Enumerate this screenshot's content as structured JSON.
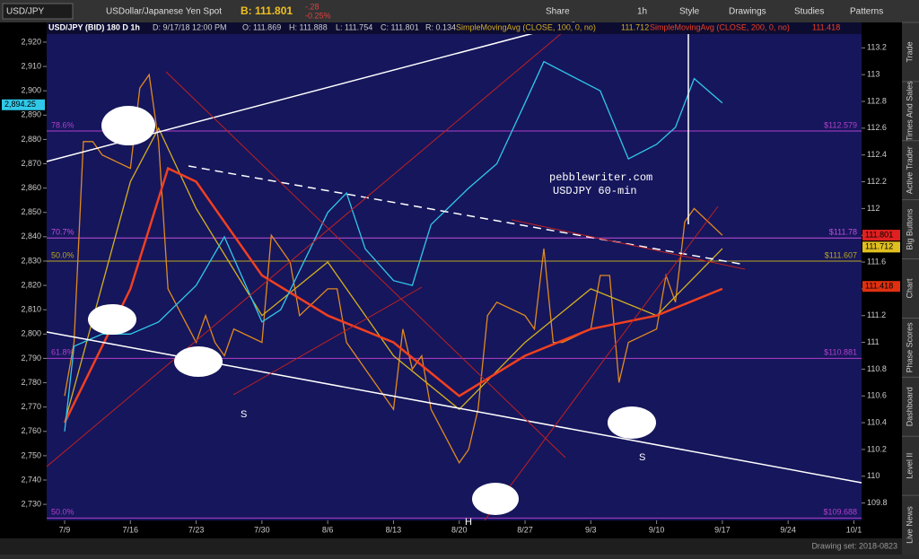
{
  "toolbar": {
    "symbol": "USD/JPY",
    "description": "USDollar/Japanese Yen Spot",
    "bid": "B: 111.801",
    "change": "-.28",
    "change_pct": "-0.25%",
    "share": "Share",
    "interval": "1h",
    "style": "Style",
    "drawings": "Drawings",
    "studies": "Studies",
    "patterns": "Patterns"
  },
  "side_tabs": [
    "Trade",
    "Times And Sales",
    "Active Trader",
    "Big Buttons",
    "Chart",
    "Phase Scores",
    "Dashboard",
    "Level II",
    "Live News"
  ],
  "info": {
    "date": "D: 9/17/18 12:00 PM",
    "open": "O: 111.869",
    "high": "H: 111.888",
    "low": "L: 111.754",
    "close": "C: 111.801",
    "range": "R: 0.134",
    "sma100_value": "111.712",
    "sma200_value": "111.418"
  },
  "footer": "Drawing set: 2018-0823",
  "chart_data": {
    "type": "line",
    "ylim": [
      109.67,
      113.39
    ],
    "yticks": [
      109.8,
      110,
      110.2,
      110.4,
      110.6,
      110.8,
      111,
      111.2,
      111.4,
      111.6,
      111.8,
      112,
      112.2,
      112.4,
      112.6,
      112.8,
      113,
      113.2
    ],
    "y2lim": [
      2723.4,
      2928.1
    ],
    "y2ticks": [
      {
        "value": 2730,
        "label": "2,730"
      },
      {
        "value": 2740,
        "label": "2,740"
      },
      {
        "value": 2750,
        "label": "2,750"
      },
      {
        "value": 2760,
        "label": "2,760"
      },
      {
        "value": 2770,
        "label": "2,770"
      },
      {
        "value": 2780,
        "label": "2,780"
      },
      {
        "value": 2790,
        "label": "2,790"
      },
      {
        "value": 2800,
        "label": "2,800"
      },
      {
        "value": 2810,
        "label": "2,810"
      },
      {
        "value": 2820,
        "label": "2,820"
      },
      {
        "value": 2830,
        "label": "2,830"
      },
      {
        "value": 2840,
        "label": "2,840"
      },
      {
        "value": 2850,
        "label": "2,850"
      },
      {
        "value": 2860,
        "label": "2,860"
      },
      {
        "value": 2870,
        "label": "2,870"
      },
      {
        "value": 2880,
        "label": "2,880"
      },
      {
        "value": 2890,
        "label": "2,890"
      },
      {
        "value": 2900,
        "label": "2,900"
      },
      {
        "value": 2910,
        "label": "2,910"
      },
      {
        "value": 2920,
        "label": "2,920"
      }
    ],
    "xticks": [
      "7/9",
      "7/16",
      "7/23",
      "7/30",
      "8/6",
      "8/13",
      "8/20",
      "8/27",
      "9/3",
      "9/10",
      "9/17",
      "9/24",
      "10/1"
    ],
    "series": [
      {
        "name": "USD/JPY (BID) 180 D 1h",
        "color": "#e08a20",
        "x": [
          "7/9",
          "7/10",
          "7/11",
          "7/12",
          "7/13",
          "7/16",
          "7/17",
          "7/18",
          "7/19",
          "7/20",
          "7/23",
          "7/24",
          "7/25",
          "7/26",
          "7/27",
          "7/30",
          "7/31",
          "8/1",
          "8/2",
          "8/3",
          "8/6",
          "8/7",
          "8/8",
          "8/9",
          "8/10",
          "8/13",
          "8/14",
          "8/15",
          "8/16",
          "8/17",
          "8/20",
          "8/21",
          "8/22",
          "8/23",
          "8/24",
          "8/27",
          "8/28",
          "8/29",
          "8/30",
          "8/31",
          "9/3",
          "9/4",
          "9/5",
          "9/6",
          "9/7",
          "9/10",
          "9/11",
          "9/12",
          "9/13",
          "9/14",
          "9/17"
        ],
        "values": [
          110.6,
          111.0,
          112.5,
          112.5,
          112.4,
          112.3,
          112.9,
          113.0,
          112.5,
          111.4,
          111.0,
          111.2,
          111.0,
          110.9,
          111.1,
          111.0,
          111.8,
          111.7,
          111.6,
          111.2,
          111.4,
          111.4,
          111.0,
          110.9,
          110.8,
          110.5,
          111.1,
          110.8,
          110.9,
          110.5,
          110.1,
          110.2,
          110.5,
          111.2,
          111.3,
          111.2,
          111.1,
          111.7,
          111.0,
          111.0,
          111.1,
          111.5,
          111.5,
          110.7,
          111.0,
          111.1,
          111.5,
          111.3,
          111.9,
          112.0,
          111.8
        ]
      },
      {
        "name": "SimpleMovingAvg (CLOSE, 100, 0, no)",
        "color": "#d4b020",
        "x": [
          "7/9",
          "7/16",
          "7/19",
          "7/23",
          "7/30",
          "8/6",
          "8/13",
          "8/20",
          "8/27",
          "9/3",
          "9/10",
          "9/17"
        ],
        "values": [
          110.4,
          112.2,
          112.6,
          112.0,
          111.2,
          111.6,
          110.9,
          110.5,
          111.0,
          111.4,
          111.2,
          111.7
        ]
      },
      {
        "name": "SimpleMovingAvg (CLOSE, 200, 0, no)",
        "color": "#f04020",
        "x": [
          "7/9",
          "7/16",
          "7/20",
          "7/23",
          "7/30",
          "8/6",
          "8/13",
          "8/20",
          "8/27",
          "9/3",
          "9/10",
          "9/17"
        ],
        "values": [
          110.4,
          111.4,
          112.3,
          112.2,
          111.5,
          111.2,
          111.0,
          110.6,
          110.9,
          111.1,
          111.2,
          111.4
        ]
      },
      {
        "axis": "y2",
        "color": "#30c8e8",
        "x": [
          "7/9",
          "7/10",
          "7/13",
          "7/16",
          "7/19",
          "7/23",
          "7/26",
          "7/30",
          "8/1",
          "8/6",
          "8/8",
          "8/10",
          "8/13",
          "8/15",
          "8/17",
          "8/21",
          "8/24",
          "8/27",
          "8/29",
          "9/4",
          "9/7",
          "9/10",
          "9/12",
          "9/14",
          "9/17"
        ],
        "values": [
          2760,
          2795,
          2800,
          2800,
          2805,
          2820,
          2840,
          2805,
          2810,
          2850,
          2858,
          2835,
          2822,
          2820,
          2845,
          2860,
          2870,
          2895,
          2912,
          2900,
          2872,
          2878,
          2885,
          2905,
          2895
        ]
      }
    ],
    "fib_levels": [
      {
        "ratio": "78.6%",
        "value": 112.579,
        "label": "$112.579",
        "color": "#b040c8"
      },
      {
        "ratio": "70.7%",
        "value": 111.78,
        "label": "$111.78",
        "color": "#c050d8"
      },
      {
        "ratio": "50.0%",
        "value": 111.607,
        "label": "$111.607",
        "color": "#b8a820"
      },
      {
        "ratio": "61.8%",
        "value": 110.881,
        "label": "$110.881",
        "color": "#b040c8"
      },
      {
        "ratio": "50.0%",
        "value": 109.688,
        "label": "$109.688",
        "color": "#b040c8"
      }
    ],
    "price_tags": [
      {
        "value": 111.801,
        "label": "111.801",
        "color": "#e02020"
      },
      {
        "value": 111.712,
        "label": "111.712",
        "color": "#e0c020"
      },
      {
        "value": 111.418,
        "label": "111.418",
        "color": "#e03010"
      }
    ],
    "left_tag": {
      "value": 2894.25,
      "label": "2,894.25"
    },
    "annotations": [
      "pebblewriter.com",
      "USDJPY 60-min",
      "S",
      "S",
      "H"
    ]
  }
}
